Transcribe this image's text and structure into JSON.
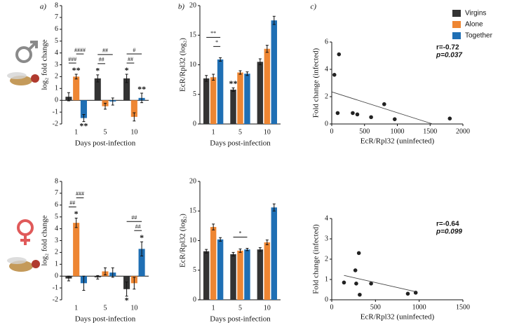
{
  "legend": [
    {
      "name": "Virgins",
      "color": "#333333"
    },
    {
      "name": "Alone",
      "color": "#ee8633"
    },
    {
      "name": "Together",
      "color": "#1f6fb4"
    }
  ],
  "chart_data": [
    {
      "type": "bar",
      "panel_label": "a)",
      "ylabel": "log₂ fold change",
      "xlabel": "Days post-infection",
      "categories": [
        "1",
        "5",
        "10"
      ],
      "ylim": [
        -2,
        8
      ],
      "yticks": [
        -2,
        -1,
        0,
        1,
        2,
        3,
        4,
        5,
        6,
        7,
        8
      ],
      "series": [
        {
          "values": [
            0.3,
            1.85,
            1.85
          ],
          "errors": [
            0.35,
            0.3,
            0.35
          ]
        },
        {
          "values": [
            2.0,
            -0.5,
            -1.4
          ],
          "errors": [
            0.2,
            0.25,
            0.35
          ]
        },
        {
          "values": [
            -1.5,
            -0.1,
            0.2
          ],
          "errors": [
            0.3,
            0.3,
            0.4
          ]
        }
      ],
      "marks": [
        {
          "text": "**",
          "category": 0,
          "series": 1
        },
        {
          "text": "**",
          "category": 0,
          "series": 2
        },
        {
          "text": "*",
          "category": 1,
          "series": 0
        },
        {
          "text": "*",
          "category": 2,
          "series": 0
        },
        {
          "text": "**",
          "category": 2,
          "series": 2
        }
      ],
      "brackets": [
        {
          "text": "###",
          "category": 0,
          "series": [
            0,
            1
          ]
        },
        {
          "text": "####",
          "category": 0,
          "series": [
            1,
            2
          ]
        },
        {
          "text": "##",
          "category": 1,
          "series": [
            0,
            1
          ]
        },
        {
          "text": "##",
          "category": 1,
          "series": [
            0,
            2
          ]
        },
        {
          "text": "##",
          "category": 2,
          "series": [
            0,
            1
          ]
        },
        {
          "text": "#",
          "category": 2,
          "series": [
            0,
            2
          ]
        }
      ]
    },
    {
      "type": "bar",
      "panel_label": "b)",
      "ylabel": "EcR/Rpl32 (log₂)",
      "xlabel": "Days post-infection",
      "categories": [
        "1",
        "5",
        "10"
      ],
      "ylim": [
        0,
        20
      ],
      "yticks": [
        0,
        5,
        10,
        15,
        20
      ],
      "series": [
        {
          "values": [
            7.7,
            5.8,
            10.5
          ],
          "errors": [
            0.5,
            0.3,
            0.5
          ]
        },
        {
          "values": [
            7.9,
            8.7,
            12.7
          ],
          "errors": [
            0.5,
            0.3,
            0.6
          ]
        },
        {
          "values": [
            10.9,
            8.5,
            17.5
          ],
          "errors": [
            0.3,
            0.3,
            0.7
          ]
        }
      ],
      "marks": [
        {
          "text": "**",
          "category": 1,
          "series": 0
        }
      ],
      "brackets": [
        {
          "text": "*",
          "category": 0,
          "series": [
            1,
            2
          ]
        },
        {
          "text": "**",
          "category": 0,
          "series": [
            0,
            2
          ]
        }
      ]
    },
    {
      "type": "scatter",
      "panel_label": "c)",
      "ylabel": "Fold change (infected)",
      "xlabel": "EcR/Rpl32 (uninfected)",
      "x": [
        40,
        90,
        110,
        320,
        390,
        600,
        800,
        960,
        1800
      ],
      "y": [
        3.6,
        0.8,
        5.1,
        0.8,
        0.7,
        0.5,
        1.45,
        0.35,
        0.4
      ],
      "xlim": [
        0,
        2000
      ],
      "xticks": [
        0,
        500,
        1000,
        1500,
        2000
      ],
      "ylim": [
        0,
        6
      ],
      "yticks": [
        0,
        2,
        4,
        6
      ],
      "fit": {
        "x": [
          0,
          1540
        ],
        "y": [
          2.35,
          0
        ]
      },
      "stats": [
        "r=-0.72",
        "p=0.037"
      ]
    },
    {
      "type": "bar",
      "ylabel": "log₂ fold change",
      "xlabel": "Days post-infection",
      "categories": [
        "1",
        "5",
        "10"
      ],
      "ylim": [
        -2,
        8
      ],
      "yticks": [
        -2,
        -1,
        0,
        1,
        2,
        3,
        4,
        5,
        6,
        7,
        8
      ],
      "series": [
        {
          "values": [
            -0.2,
            -0.1,
            -1.1
          ],
          "errors": [
            0.2,
            0.15,
            0.6
          ]
        },
        {
          "values": [
            4.5,
            0.4,
            -0.6
          ],
          "errors": [
            0.4,
            0.3,
            0.5
          ]
        },
        {
          "values": [
            -0.6,
            0.3,
            2.3
          ],
          "errors": [
            0.6,
            0.4,
            0.6
          ]
        }
      ],
      "marks": [
        {
          "text": "*",
          "category": 0,
          "series": 1
        },
        {
          "text": "*",
          "category": 2,
          "series": 0
        },
        {
          "text": "*",
          "category": 2,
          "series": 2
        }
      ],
      "brackets": [
        {
          "text": "##",
          "category": 0,
          "series": [
            0,
            1
          ]
        },
        {
          "text": "###",
          "category": 0,
          "series": [
            1,
            2
          ]
        },
        {
          "text": "##",
          "category": 2,
          "series": [
            1,
            2
          ]
        },
        {
          "text": "##",
          "category": 2,
          "series": [
            0,
            2
          ]
        }
      ]
    },
    {
      "type": "bar",
      "ylabel": "EcR/Rpl32 (log₂)",
      "xlabel": "Days post-infection",
      "categories": [
        "1",
        "5",
        "10"
      ],
      "ylim": [
        0,
        20
      ],
      "yticks": [
        0,
        5,
        10,
        15,
        20
      ],
      "series": [
        {
          "values": [
            8.2,
            7.7,
            8.5
          ],
          "errors": [
            0.3,
            0.3,
            0.3
          ]
        },
        {
          "values": [
            12.3,
            8.3,
            9.7
          ],
          "errors": [
            0.5,
            0.3,
            0.4
          ]
        },
        {
          "values": [
            10.2,
            8.5,
            15.6
          ],
          "errors": [
            0.3,
            0.2,
            0.6
          ]
        }
      ],
      "marks": [],
      "brackets": [
        {
          "text": "*",
          "category": 1,
          "series": [
            0,
            2
          ]
        }
      ]
    },
    {
      "type": "scatter",
      "ylabel": "Fold change (infected)",
      "xlabel": "EcR/Rpl32 (uninfected)",
      "x": [
        140,
        270,
        280,
        310,
        320,
        450,
        870,
        960
      ],
      "y": [
        0.85,
        1.45,
        0.8,
        2.3,
        0.25,
        0.8,
        0.3,
        0.35
      ],
      "xlim": [
        0,
        1500
      ],
      "xticks": [
        0,
        500,
        1000,
        1500
      ],
      "ylim": [
        0,
        4
      ],
      "yticks": [
        0,
        1,
        2,
        3,
        4
      ],
      "fit": {
        "x": [
          140,
          960
        ],
        "y": [
          1.2,
          0.4
        ]
      },
      "stats": [
        "r=-0.64",
        "p=0.099"
      ]
    }
  ]
}
